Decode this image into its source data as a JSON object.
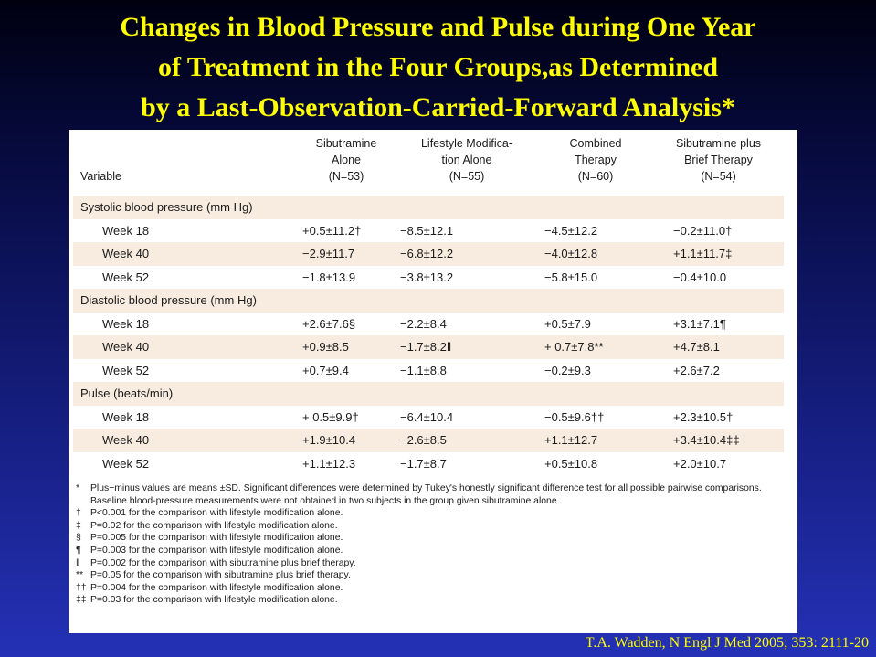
{
  "slide": {
    "title_lines": [
      "Changes in Blood Pressure and Pulse during One Year",
      "of Treatment in the Four Groups,as Determined",
      "by a Last-Observation-Carried-Forward Analysis*"
    ],
    "citation": "T.A. Wadden, N Engl J Med 2005; 353: 2111-20",
    "colors": {
      "title": "#ffff00",
      "background_top": "#000010",
      "background_bottom": "#2431b6",
      "row_shade": "#f8ece0"
    }
  },
  "table": {
    "variable_header": "Variable",
    "columns": [
      {
        "lines": [
          "Sibutramine",
          "Alone",
          "(N=53)"
        ]
      },
      {
        "lines": [
          "Lifestyle Modifica-",
          "tion Alone",
          "(N=55)"
        ]
      },
      {
        "lines": [
          "Combined",
          "Therapy",
          "(N=60)"
        ]
      },
      {
        "lines": [
          "Sibutramine plus",
          "Brief Therapy",
          "(N=54)"
        ]
      }
    ],
    "groups": [
      {
        "label": "Systolic blood pressure (mm Hg)",
        "rows": [
          {
            "label": "Week 18",
            "values": [
              "+0.5±11.2†",
              "−8.5±12.1",
              "−4.5±12.2",
              "−0.2±11.0†"
            ]
          },
          {
            "label": "Week 40",
            "values": [
              "−2.9±11.7",
              "−6.8±12.2",
              "−4.0±12.8",
              "+1.1±11.7‡"
            ]
          },
          {
            "label": "Week 52",
            "values": [
              "−1.8±13.9",
              "−3.8±13.2",
              "−5.8±15.0",
              "−0.4±10.0"
            ]
          }
        ]
      },
      {
        "label": "Diastolic blood pressure (mm Hg)",
        "rows": [
          {
            "label": "Week 18",
            "values": [
              "+2.6±7.6§",
              "−2.2±8.4",
              "+0.5±7.9",
              "+3.1±7.1¶"
            ]
          },
          {
            "label": "Week 40",
            "values": [
              "+0.9±8.5",
              "−1.7±8.2‖",
              "+ 0.7±7.8**",
              "+4.7±8.1"
            ]
          },
          {
            "label": "Week 52",
            "values": [
              "+0.7±9.4",
              "−1.1±8.8",
              "−0.2±9.3",
              "+2.6±7.2"
            ]
          }
        ]
      },
      {
        "label": "Pulse (beats/min)",
        "rows": [
          {
            "label": "Week 18",
            "values": [
              "+ 0.5±9.9†",
              "−6.4±10.4",
              "−0.5±9.6††",
              "+2.3±10.5†"
            ]
          },
          {
            "label": "Week 40",
            "values": [
              "+1.9±10.4",
              "−2.6±8.5",
              "+1.1±12.7",
              "+3.4±10.4‡‡"
            ]
          },
          {
            "label": "Week 52",
            "values": [
              "+1.1±12.3",
              "−1.7±8.7",
              "+0.5±10.8",
              "+2.0±10.7"
            ]
          }
        ]
      }
    ],
    "footnotes": [
      {
        "symbol": "*",
        "text": "Plus−minus values are means ±SD. Significant differences were determined by Tukey's honestly significant difference test  for all possible pairwise comparisons. Baseline blood-pressure measurements were not obtained in two subjects in the group given sibutramine alone."
      },
      {
        "symbol": "†",
        "text": "P<0.001 for the comparison with lifestyle modification alone."
      },
      {
        "symbol": "‡",
        "text": "P=0.02 for the comparison with lifestyle modification alone."
      },
      {
        "symbol": "§",
        "text": "P=0.005 for the comparison with lifestyle modification alone."
      },
      {
        "symbol": "¶",
        "text": "P=0.003 for the comparison with lifestyle modification alone."
      },
      {
        "symbol": "‖",
        "text": "P=0.002 for the comparison with sibutramine plus brief therapy."
      },
      {
        "symbol": "**",
        "text": "P=0.05 for the comparison with sibutramine plus brief therapy."
      },
      {
        "symbol": "††",
        "text": "P=0.004 for the comparison with lifestyle modification alone."
      },
      {
        "symbol": "‡‡",
        "text": "P=0.03 for the comparison with lifestyle modification alone."
      }
    ]
  }
}
